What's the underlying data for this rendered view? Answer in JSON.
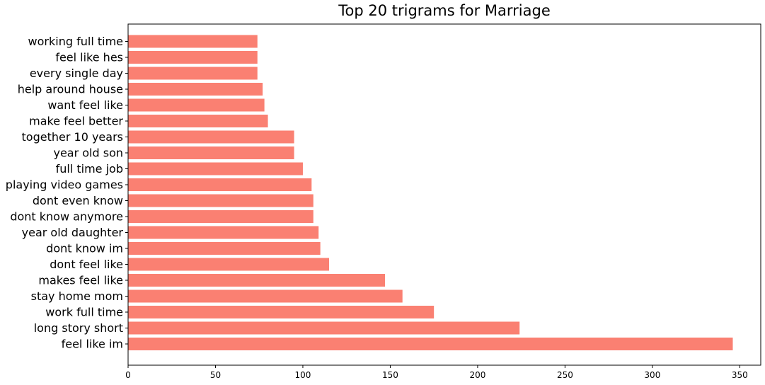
{
  "chart_data": {
    "type": "bar",
    "orientation": "horizontal",
    "title": "Top 20 trigrams for Marriage",
    "xlabel": "",
    "ylabel": "",
    "bar_color": "#fa8072",
    "xlim": [
      0,
      362
    ],
    "xticks": [
      0,
      50,
      100,
      150,
      200,
      250,
      300,
      350
    ],
    "grid": false,
    "categories": [
      "feel like im",
      "long story short",
      "work full time",
      "stay home mom",
      "makes feel like",
      "dont feel like",
      "dont know im",
      "year old daughter",
      "dont know anymore",
      "dont even know",
      "playing video games",
      "full time job",
      "year old son",
      "together 10 years",
      "make feel better",
      "want feel like",
      "help around house",
      "every single day",
      "feel like hes",
      "working full time"
    ],
    "values": [
      346,
      224,
      175,
      157,
      147,
      115,
      110,
      109,
      106,
      106,
      105,
      100,
      95,
      95,
      80,
      78,
      77,
      74,
      74,
      74
    ]
  }
}
